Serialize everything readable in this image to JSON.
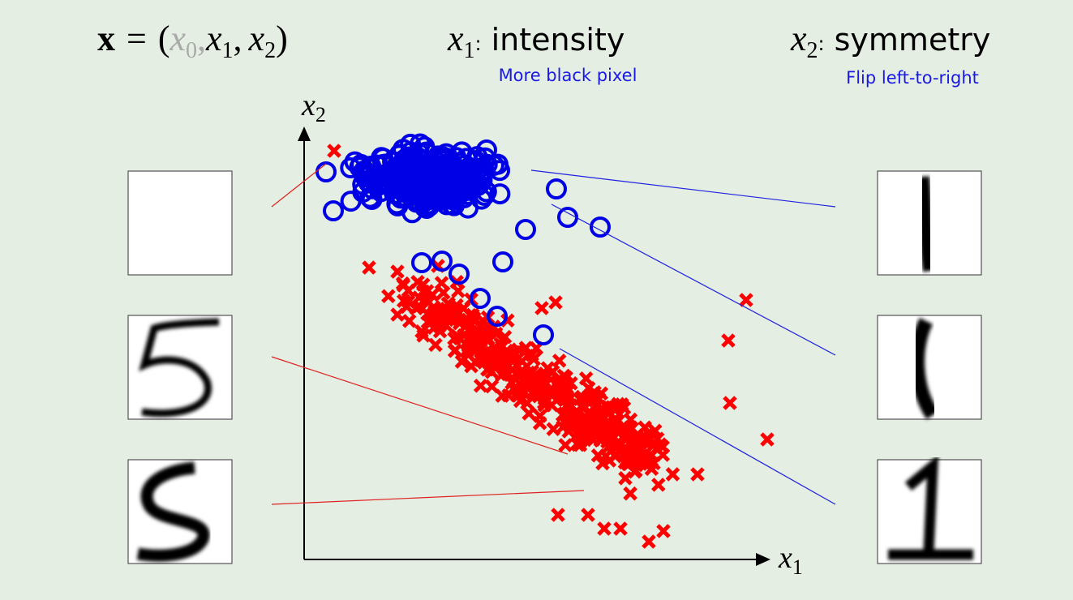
{
  "formula": {
    "lhs": "x",
    "eq": "=",
    "open": "(",
    "sep": ",",
    "close": ")",
    "terms": [
      {
        "base": "x",
        "sub": "0"
      },
      {
        "base": "x",
        "sub": "1"
      },
      {
        "base": "x",
        "sub": "2"
      }
    ]
  },
  "features": [
    {
      "var": {
        "base": "x",
        "sub": "1"
      },
      "colon": ":",
      "name": "intensity",
      "note": "More black pixel"
    },
    {
      "var": {
        "base": "x",
        "sub": "2"
      },
      "colon": ":",
      "name": "symmetry",
      "note": "Flip left-to-right"
    }
  ],
  "axes": {
    "x": {
      "base": "x",
      "sub": "1"
    },
    "y": {
      "base": "x",
      "sub": "2"
    }
  }
}
